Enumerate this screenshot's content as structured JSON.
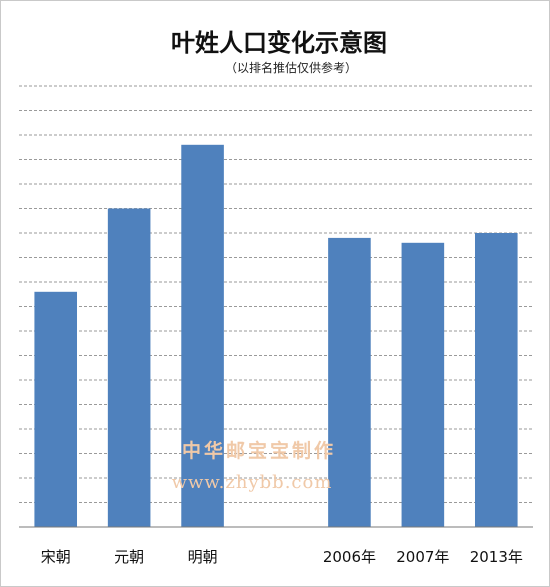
{
  "chart_data": {
    "type": "bar",
    "title": "叶姓人口变化示意图",
    "subtitle": "（以排名推估仅供参考）",
    "categories": [
      "宋朝",
      "元朝",
      "明朝",
      "",
      "2006年",
      "2007年",
      "2013年"
    ],
    "values": [
      48,
      65,
      78,
      null,
      59,
      58,
      60
    ],
    "ylim": [
      0,
      90
    ],
    "grid_step": 5,
    "grid": true,
    "legend": "none",
    "xlabel": "",
    "ylabel": "",
    "bar_color": "#4f81bd"
  },
  "watermark": {
    "text": "中华邮宝宝制作",
    "url": "www.zhybb.com",
    "color": "#f0c9a8"
  }
}
